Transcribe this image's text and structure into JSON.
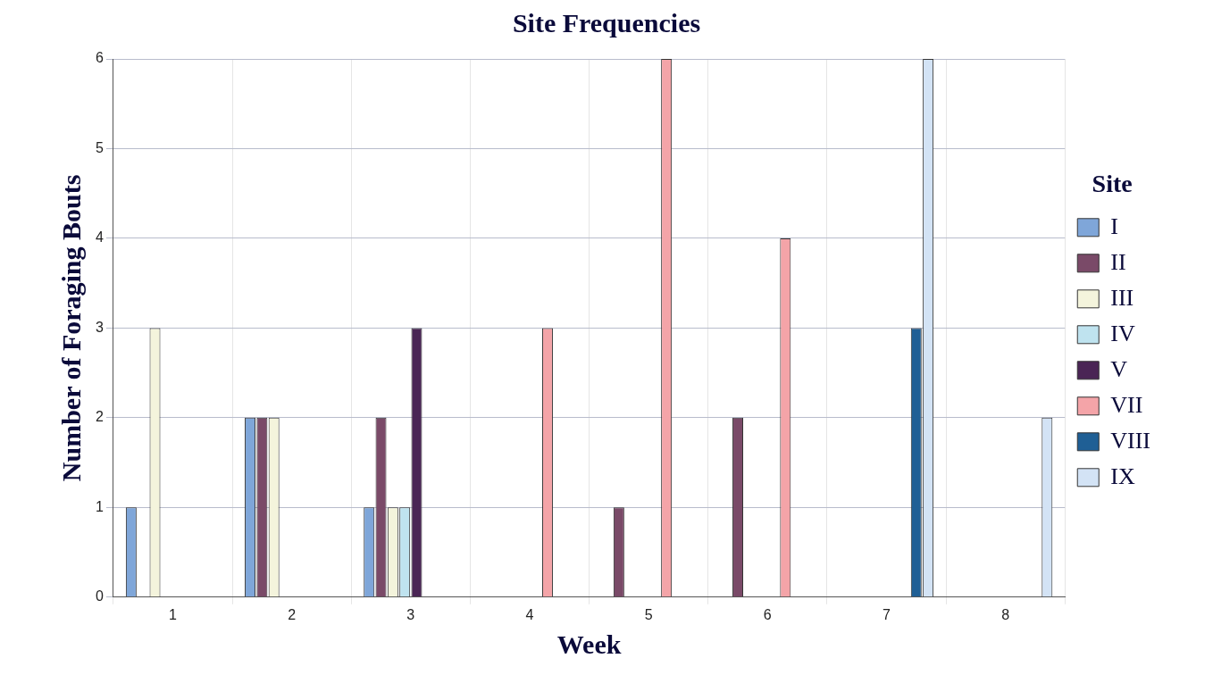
{
  "chart_data": {
    "type": "bar",
    "title": "Site Frequencies",
    "xlabel": "Week",
    "ylabel": "Number of Foraging Bouts",
    "legend_title": "Site",
    "categories": [
      "1",
      "2",
      "3",
      "4",
      "5",
      "6",
      "7",
      "8"
    ],
    "series": [
      {
        "name": "I",
        "color": "#7fa6d9",
        "values": [
          1,
          2,
          1,
          0,
          0,
          0,
          0,
          0
        ]
      },
      {
        "name": "II",
        "color": "#7a4a68",
        "values": [
          0,
          2,
          2,
          0,
          1,
          2,
          0,
          0
        ]
      },
      {
        "name": "III",
        "color": "#f4f4dc",
        "values": [
          3,
          2,
          1,
          0,
          0,
          0,
          0,
          0
        ]
      },
      {
        "name": "IV",
        "color": "#bfe3ef",
        "values": [
          0,
          0,
          1,
          0,
          0,
          0,
          0,
          0
        ]
      },
      {
        "name": "V",
        "color": "#4a2555",
        "values": [
          0,
          0,
          3,
          0,
          0,
          0,
          0,
          0
        ]
      },
      {
        "name": "VII",
        "color": "#f4a4a8",
        "values": [
          0,
          0,
          0,
          3,
          6,
          4,
          0,
          0
        ]
      },
      {
        "name": "VIII",
        "color": "#1f5f95",
        "values": [
          0,
          0,
          0,
          0,
          0,
          0,
          3,
          0
        ]
      },
      {
        "name": "IX",
        "color": "#d3e3f5",
        "values": [
          0,
          0,
          0,
          0,
          0,
          0,
          6,
          2
        ]
      }
    ],
    "ylim": [
      0,
      6
    ],
    "yticks": [
      0,
      1,
      2,
      3,
      4,
      5,
      6
    ],
    "grid": true,
    "legend": "right"
  }
}
